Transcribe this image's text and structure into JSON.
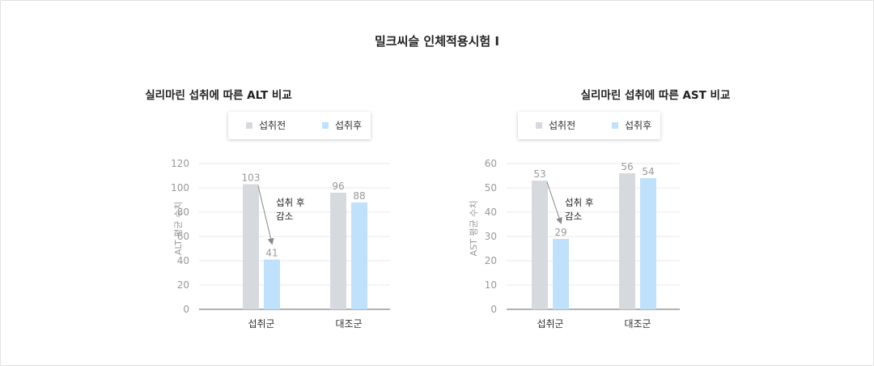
{
  "title": "밀크씨슬 인체적용시험 I",
  "colors": {
    "before": "#d6dadf",
    "after": "#bfe1fb",
    "grid": "#e8e8e8",
    "axis": "#666666",
    "tick": "#999999",
    "arrow": "#888888"
  },
  "legend": {
    "before": "섭취전",
    "after": "섭취후"
  },
  "chart_data": [
    {
      "type": "bar",
      "title": "실리마린 섭취에 따른 ALT 비교",
      "ylabel": "ALT 평균 수치",
      "ylim": [
        0,
        120
      ],
      "yticks": [
        "0",
        "20",
        "40",
        "60",
        "80",
        "100",
        "120"
      ],
      "categories": [
        "섭취군",
        "대조군"
      ],
      "series": [
        {
          "name": "섭취전",
          "values": [
            103,
            96
          ]
        },
        {
          "name": "섭취후",
          "values": [
            41,
            88
          ]
        }
      ],
      "annotation": [
        "섭취 후",
        "감소"
      ]
    },
    {
      "type": "bar",
      "title": "실리마린 섭취에 따른 AST 비교",
      "ylabel": "AST 평균 수치",
      "ylim": [
        0,
        60
      ],
      "yticks": [
        "0",
        "10",
        "20",
        "30",
        "40",
        "50",
        "60"
      ],
      "categories": [
        "섭취군",
        "대조군"
      ],
      "series": [
        {
          "name": "섭취전",
          "values": [
            53,
            56
          ]
        },
        {
          "name": "섭취후",
          "values": [
            29,
            54
          ]
        }
      ],
      "annotation": [
        "섭취 후",
        "감소"
      ]
    }
  ]
}
